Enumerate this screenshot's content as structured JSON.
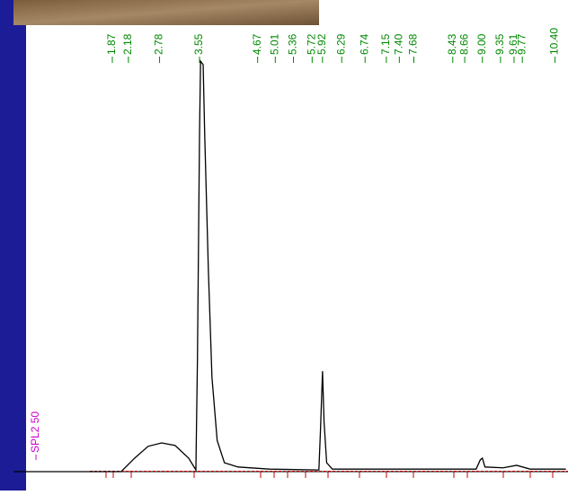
{
  "chart_data": {
    "type": "line",
    "xlim": [
      0,
      10.65
    ],
    "ylim": [
      0,
      100
    ],
    "x": [
      0.0,
      2.04,
      2.3,
      2.56,
      2.82,
      3.08,
      3.34,
      3.48,
      3.51,
      3.55,
      3.57,
      3.62,
      3.65,
      3.72,
      3.79,
      3.89,
      4.03,
      4.29,
      4.9,
      5.85,
      5.88,
      5.92,
      5.95,
      6.0,
      6.11,
      8.88,
      8.96,
      9.0,
      9.05,
      9.4,
      9.66,
      9.92,
      10.61
    ],
    "series": [
      {
        "name": "SPL2 50",
        "color": "#000000",
        "label_color": "#cc00cc",
        "values": [
          0,
          0,
          3.2,
          6.0,
          6.8,
          6.2,
          3.2,
          0.4,
          26.6,
          79.8,
          97.2,
          96.4,
          79.8,
          47.9,
          22.3,
          7.4,
          2.1,
          1.1,
          0.6,
          0.4,
          9.6,
          23.8,
          11.7,
          2.1,
          0.6,
          0.6,
          2.8,
          3.2,
          1.1,
          0.9,
          1.5,
          0.6,
          0.6
        ]
      }
    ],
    "peak_labels": [
      1.87,
      2.18,
      2.78,
      3.55,
      4.67,
      5.01,
      5.36,
      5.72,
      5.92,
      6.29,
      6.74,
      7.15,
      {
        "value": 7.4,
        "label": "7.40"
      },
      7.68,
      8.43,
      8.66,
      {
        "value": 9,
        "label": "9.00"
      },
      9.35,
      9.61,
      9.77,
      {
        "value": 10.4,
        "label": "10.40"
      }
    ],
    "peak_label_color": "#008800",
    "baseline_color": "#cc0000"
  }
}
